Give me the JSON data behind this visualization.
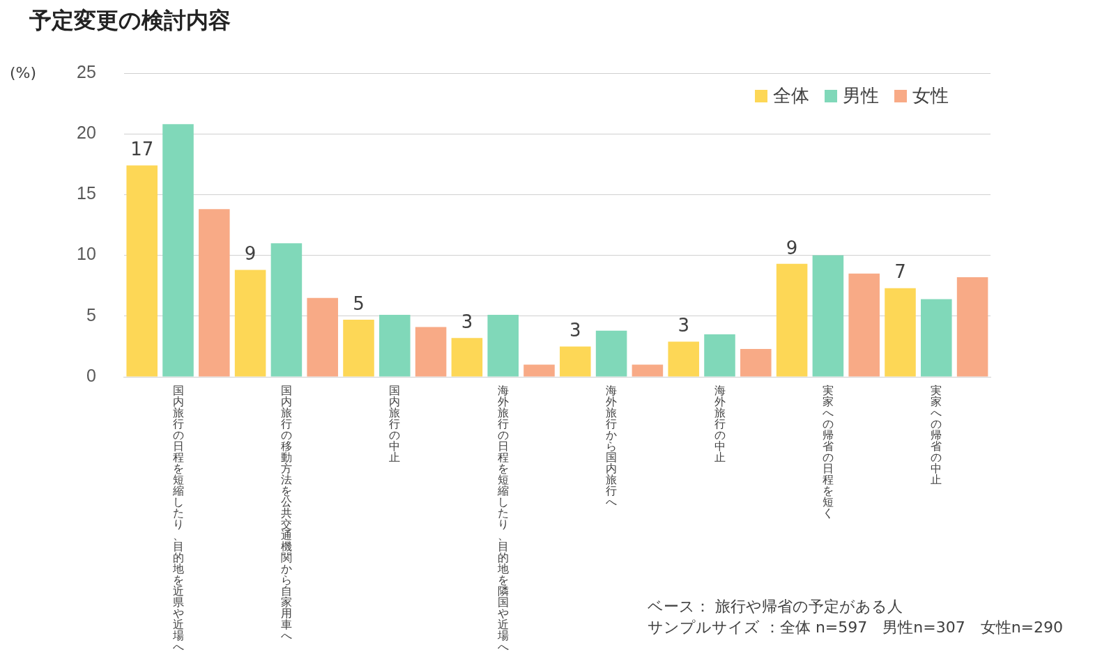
{
  "chart_data": {
    "type": "bar",
    "title": "予定変更の検討内容",
    "ylabel": "(%)",
    "categories": [
      "国内旅行の日程を短縮したり、目的地を近県や近場へ",
      "国内旅行の移動方法を公共交通機関から自家用車へ",
      "国内旅行の中止",
      "海外旅行の日程を短縮したり、目的地を隣国や近場へ",
      "海外旅行から国内旅行へ",
      "海外旅行の中止",
      "実家への帰省の日程を短く",
      "実家への帰省の中止"
    ],
    "series": [
      {
        "name": "全体",
        "color": "#fdd756",
        "values": [
          17.4,
          8.8,
          4.7,
          3.2,
          2.5,
          2.9,
          9.3,
          7.3
        ],
        "value_labels": [
          "17",
          "9",
          "5",
          "3",
          "3",
          "3",
          "9",
          "7"
        ]
      },
      {
        "name": "男性",
        "color": "#80d8b9",
        "values": [
          20.8,
          11.0,
          5.1,
          5.1,
          3.8,
          3.5,
          10.0,
          6.4
        ]
      },
      {
        "name": "女性",
        "color": "#f8aa86",
        "values": [
          13.8,
          6.5,
          4.1,
          1.0,
          1.0,
          2.3,
          8.5,
          8.2
        ]
      }
    ],
    "ylim": [
      0,
      25
    ],
    "yticks": [
      0,
      5,
      10,
      15,
      20,
      25
    ],
    "grid": "y",
    "legend": "top right",
    "annotations": [
      "ベース： 旅行や帰省の予定がある人",
      "サンプルサイズ ：全体 n=597　男性n=307　女性n=290"
    ]
  }
}
